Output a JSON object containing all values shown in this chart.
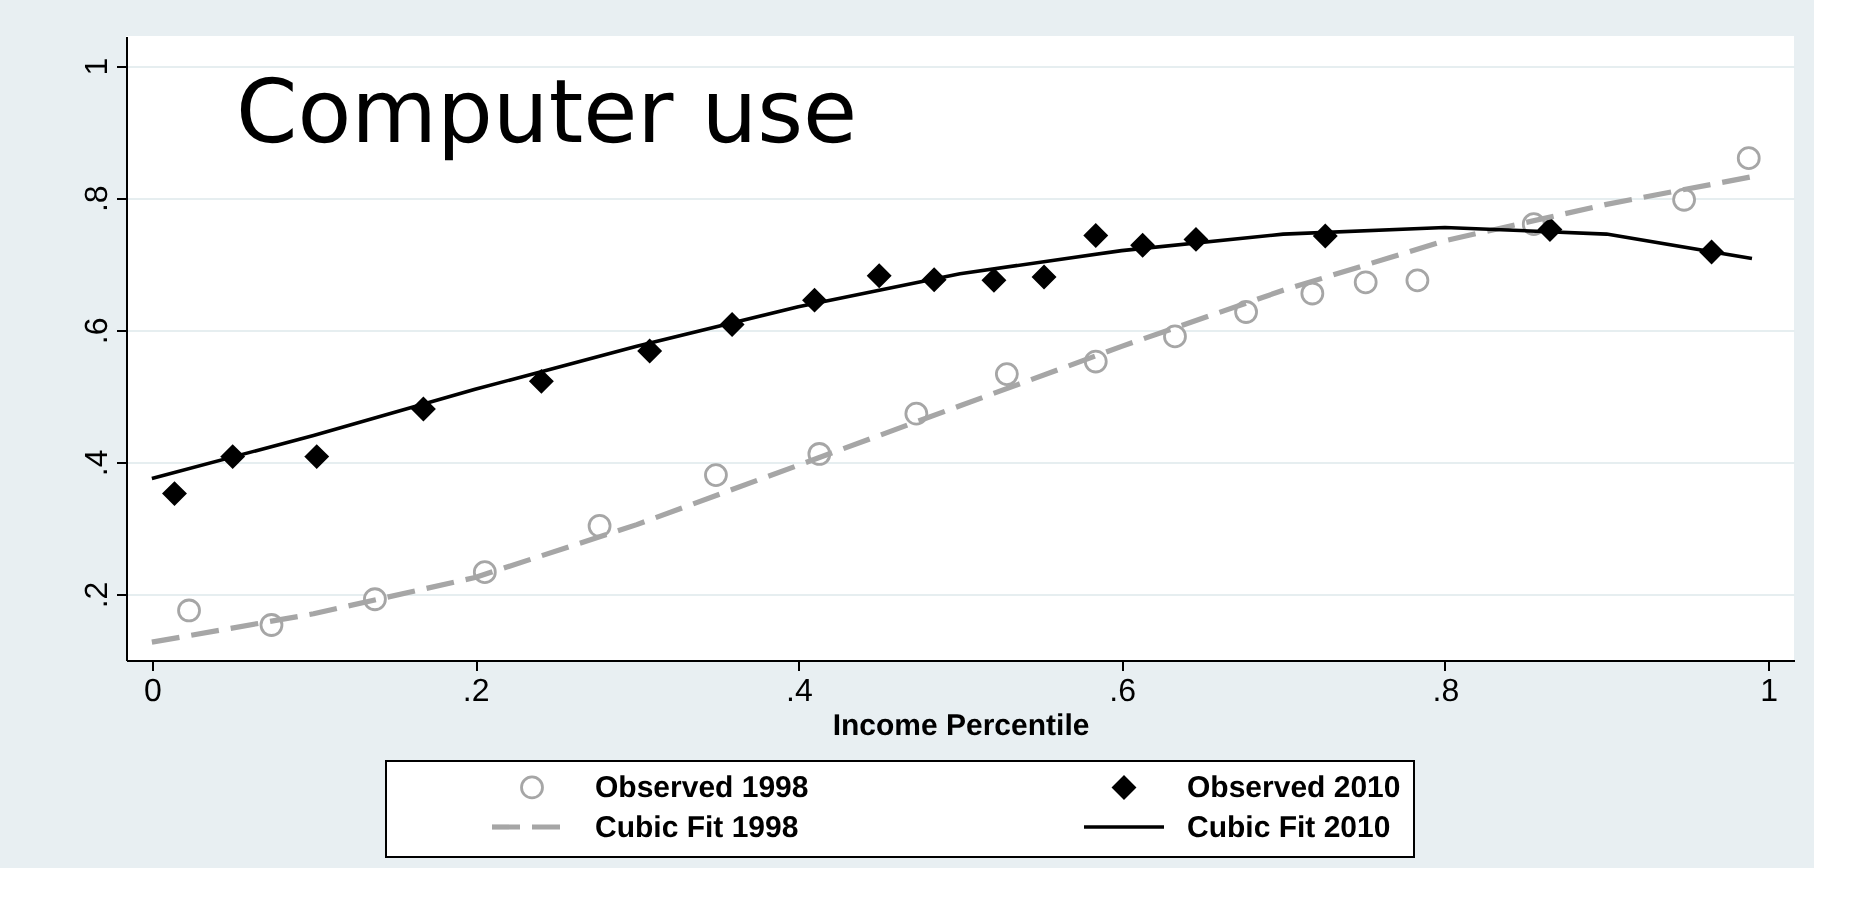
{
  "chart_data": {
    "type": "scatter",
    "title": "Computer use",
    "xlabel": "Income Percentile",
    "xlim": [
      -0.016,
      1.016
    ],
    "ylim": [
      0.1,
      1.045
    ],
    "xticks": [
      0,
      {
        "value": 0.2,
        "label": ".2"
      },
      {
        "value": 0.4,
        "label": ".4"
      },
      {
        "value": 0.6,
        "label": ".6"
      },
      {
        "value": 0.8,
        "label": ".8"
      },
      1
    ],
    "yticks": [
      {
        "value": 0.2,
        "label": ".2"
      },
      {
        "value": 0.4,
        "label": ".4"
      },
      {
        "value": 0.6,
        "label": ".6"
      },
      {
        "value": 0.8,
        "label": ".8"
      },
      1
    ],
    "grid": "y",
    "legend": "bottom",
    "series": [
      {
        "name": "Observed 1998",
        "marker": "circle",
        "color": "#a6a6a6",
        "x": [
          0.023,
          0.074,
          0.138,
          0.206,
          0.277,
          0.349,
          0.413,
          0.473,
          0.529,
          0.584,
          0.633,
          0.677,
          0.718,
          0.751,
          0.783,
          0.855,
          0.948,
          0.988
        ],
        "values": [
          0.175,
          0.153,
          0.192,
          0.233,
          0.303,
          0.38,
          0.412,
          0.473,
          0.533,
          0.552,
          0.59,
          0.627,
          0.655,
          0.672,
          0.675,
          0.76,
          0.797,
          0.86
        ]
      },
      {
        "name": "Observed 2010",
        "marker": "diamond",
        "color": "#000000",
        "x": [
          0.014,
          0.05,
          0.102,
          0.168,
          0.241,
          0.308,
          0.359,
          0.41,
          0.45,
          0.484,
          0.521,
          0.552,
          0.584,
          0.613,
          0.646,
          0.726,
          0.865,
          0.965
        ],
        "values": [
          0.352,
          0.408,
          0.408,
          0.48,
          0.522,
          0.568,
          0.608,
          0.645,
          0.682,
          0.676,
          0.675,
          0.68,
          0.743,
          0.728,
          0.737,
          0.742,
          0.752,
          0.718
        ]
      },
      {
        "name": "Cubic Fit 1998",
        "type": "line",
        "line_style": "dashed",
        "color": "#a6a6a6",
        "x": [
          0,
          0.1,
          0.2,
          0.3,
          0.4,
          0.5,
          0.6,
          0.7,
          0.8,
          0.9,
          0.99
        ],
        "values": [
          0.127,
          0.17,
          0.225,
          0.305,
          0.395,
          0.485,
          0.575,
          0.66,
          0.735,
          0.79,
          0.832
        ]
      },
      {
        "name": "Cubic Fit 2010",
        "type": "line",
        "line_style": "solid",
        "color": "#000000",
        "x": [
          0,
          0.1,
          0.2,
          0.3,
          0.4,
          0.5,
          0.6,
          0.7,
          0.8,
          0.9,
          0.99
        ],
        "values": [
          0.375,
          0.44,
          0.51,
          0.575,
          0.635,
          0.685,
          0.72,
          0.745,
          0.755,
          0.745,
          0.708
        ]
      }
    ]
  }
}
